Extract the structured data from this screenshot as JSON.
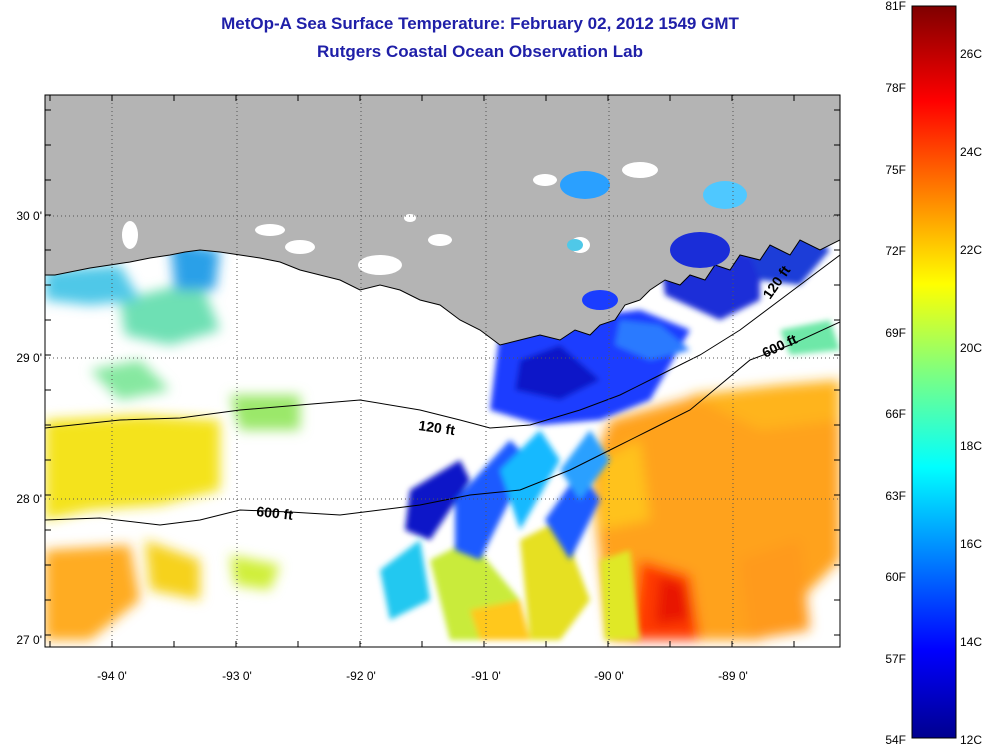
{
  "title": {
    "line1": "MetOp-A Sea Surface Temperature:  February 02, 2012 1549 GMT",
    "line2": "Rutgers Coastal Ocean Observation Lab"
  },
  "map": {
    "x_ticks": [
      "-94 0'",
      "-93 0'",
      "-92 0'",
      "-91 0'",
      "-90 0'",
      "-89 0'"
    ],
    "y_ticks": [
      "30 0'",
      "29 0'",
      "28 0'",
      "27 0'"
    ],
    "contours": [
      {
        "label": "120 ft"
      },
      {
        "label": "600 ft"
      },
      {
        "label": "120 ft"
      },
      {
        "label": "600 ft"
      }
    ],
    "land_color": "#b4b4b4",
    "no_data_color": "#ffffff"
  },
  "colorbar": {
    "fahrenheit": [
      "81F",
      "78F",
      "75F",
      "72F",
      "69F",
      "66F",
      "63F",
      "60F",
      "57F",
      "54F"
    ],
    "celsius": [
      "26C",
      "24C",
      "22C",
      "20C",
      "18C",
      "16C",
      "14C",
      "12C"
    ],
    "colormap": "jet"
  }
}
